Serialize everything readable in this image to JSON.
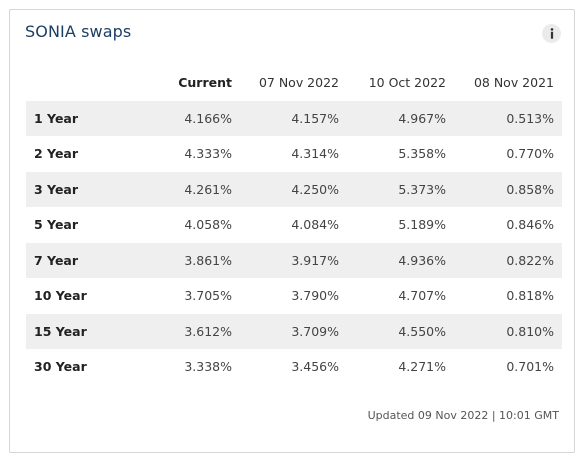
{
  "card": {
    "title": "SONIA swaps",
    "info_icon": "info-icon"
  },
  "table": {
    "headers": [
      "",
      "Current",
      "07 Nov 2022",
      "10 Oct 2022",
      "08 Nov 2021"
    ],
    "rows": [
      {
        "term": "1 Year",
        "values": [
          "4.166%",
          "4.157%",
          "4.967%",
          "0.513%"
        ]
      },
      {
        "term": "2 Year",
        "values": [
          "4.333%",
          "4.314%",
          "5.358%",
          "0.770%"
        ]
      },
      {
        "term": "3 Year",
        "values": [
          "4.261%",
          "4.250%",
          "5.373%",
          "0.858%"
        ]
      },
      {
        "term": "5 Year",
        "values": [
          "4.058%",
          "4.084%",
          "5.189%",
          "0.846%"
        ]
      },
      {
        "term": "7 Year",
        "values": [
          "3.861%",
          "3.917%",
          "4.936%",
          "0.822%"
        ]
      },
      {
        "term": "10 Year",
        "values": [
          "3.705%",
          "3.790%",
          "4.707%",
          "0.818%"
        ]
      },
      {
        "term": "15 Year",
        "values": [
          "3.612%",
          "3.709%",
          "4.550%",
          "0.810%"
        ]
      },
      {
        "term": "30 Year",
        "values": [
          "3.338%",
          "3.456%",
          "4.271%",
          "0.701%"
        ]
      }
    ]
  },
  "footer": {
    "updated": "Updated 09 Nov 2022 | 10:01 GMT"
  },
  "colors": {
    "title": "#1c3f62",
    "stripe": "#efefef",
    "border": "#d6d6d6"
  }
}
